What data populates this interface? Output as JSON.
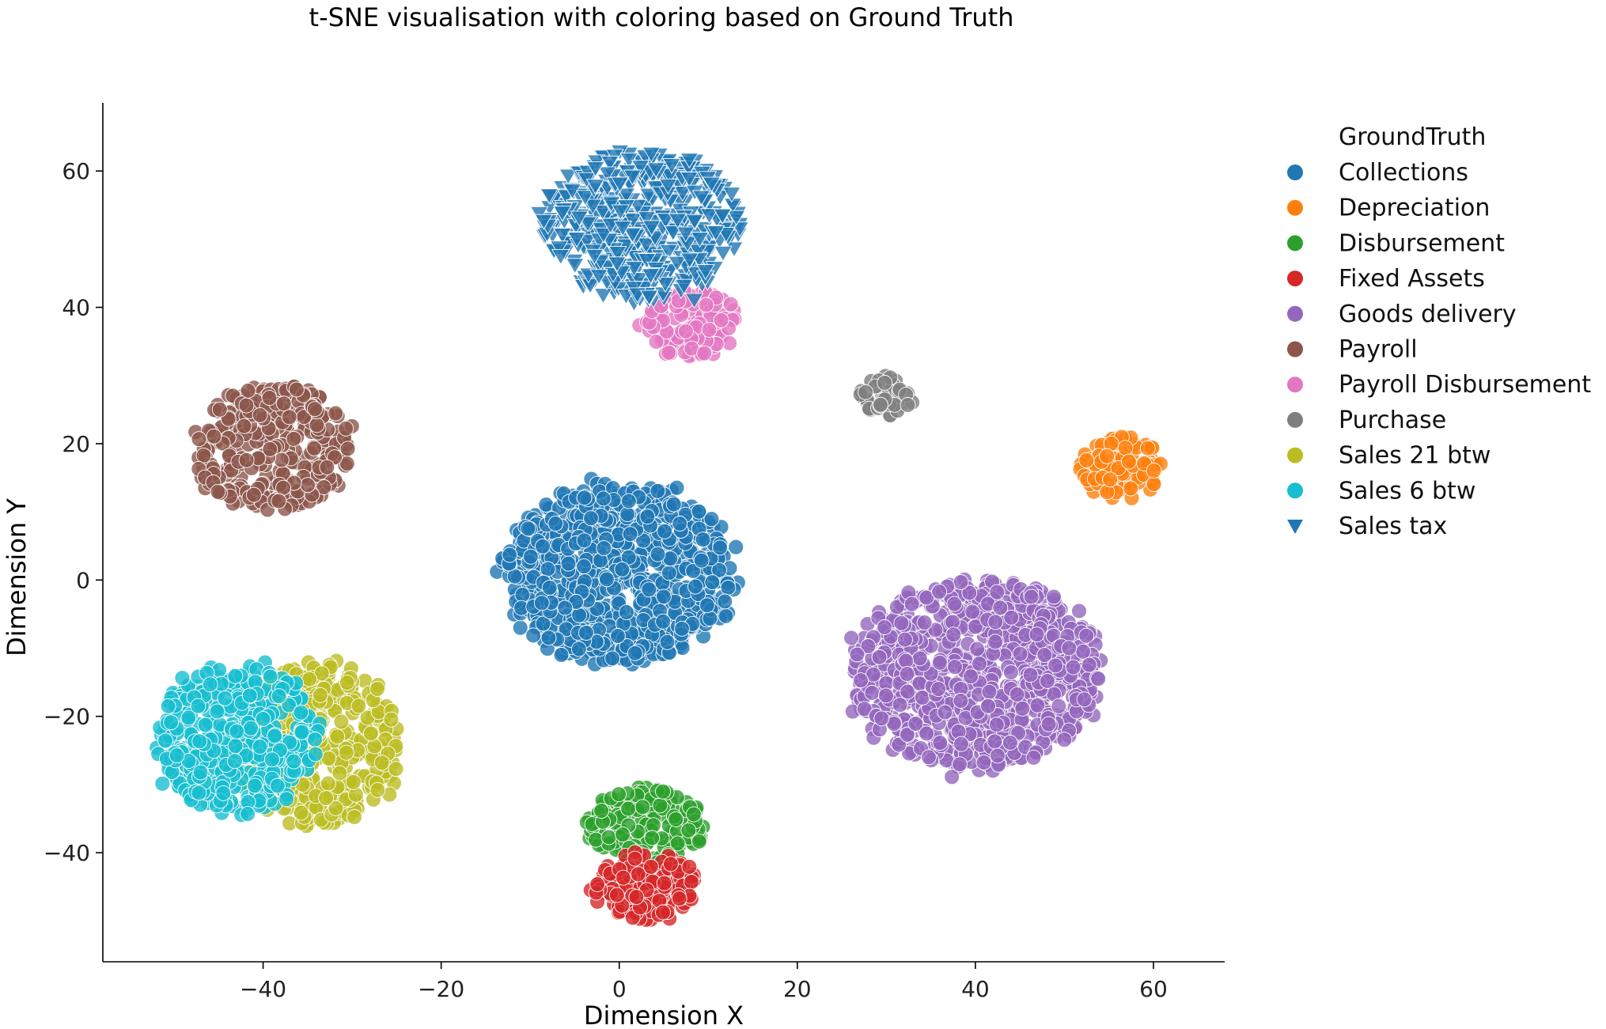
{
  "chart_data": {
    "type": "scatter",
    "title": "t-SNE visualisation with coloring based on Ground Truth",
    "xlabel": "Dimension X",
    "ylabel": "Dimension Y",
    "xlim": [
      -58,
      68
    ],
    "ylim": [
      -56,
      70
    ],
    "xticks": [
      -40,
      -20,
      0,
      20,
      40,
      60
    ],
    "yticks": [
      -40,
      -20,
      0,
      20,
      40,
      60
    ],
    "grid": false,
    "legend": {
      "title": "GroundTruth",
      "placement": "outside-top-right"
    },
    "series": [
      {
        "name": "Collections",
        "color": "#1f77b4",
        "marker": "circle",
        "cluster": {
          "center": [
            0,
            1
          ],
          "spread": [
            13,
            13
          ],
          "count": 900
        }
      },
      {
        "name": "Depreciation",
        "color": "#ff7f0e",
        "marker": "circle",
        "cluster": {
          "center": [
            56.5,
            16.5
          ],
          "spread": [
            5,
            4.5
          ],
          "count": 110
        }
      },
      {
        "name": "Disbursement",
        "color": "#2ca02c",
        "marker": "circle",
        "cluster": {
          "center": [
            3,
            -36
          ],
          "spread": [
            7,
            5.5
          ],
          "count": 170
        }
      },
      {
        "name": "Fixed Assets",
        "color": "#d62728",
        "marker": "circle",
        "cluster": {
          "center": [
            3,
            -45
          ],
          "spread": [
            6,
            5
          ],
          "count": 150
        }
      },
      {
        "name": "Goods delivery",
        "color": "#9467bd",
        "marker": "circle",
        "cluster": {
          "center": [
            40,
            -13.5
          ],
          "spread": [
            14,
            14
          ],
          "count": 900
        }
      },
      {
        "name": "Payroll",
        "color": "#8c564b",
        "marker": "circle",
        "cluster": {
          "center": [
            -39,
            19.5
          ],
          "spread": [
            9,
            9.5
          ],
          "count": 320
        }
      },
      {
        "name": "Payroll Disbursement",
        "color": "#e377c2",
        "marker": "circle",
        "cluster": {
          "center": [
            8,
            37.5
          ],
          "spread": [
            5.5,
            5
          ],
          "count": 120
        }
      },
      {
        "name": "Purchase",
        "color": "#7f7f7f",
        "marker": "circle",
        "cluster": {
          "center": [
            30,
            27
          ],
          "spread": [
            3,
            3
          ],
          "count": 45
        }
      },
      {
        "name": "Sales 21 btw",
        "color": "#bcbd22",
        "marker": "circle",
        "cluster": {
          "center": [
            -34,
            -24
          ],
          "spread": [
            9.5,
            12
          ],
          "count": 400
        }
      },
      {
        "name": "Sales 6 btw",
        "color": "#17becf",
        "marker": "circle",
        "cluster": {
          "center": [
            -43,
            -23
          ],
          "spread": [
            9,
            11
          ],
          "count": 420
        }
      },
      {
        "name": "Sales tax",
        "color": "#1f77b4",
        "marker": "triangle-down",
        "cluster": {
          "center": [
            2.5,
            52
          ],
          "spread": [
            11,
            11
          ],
          "count": 520
        }
      }
    ]
  }
}
